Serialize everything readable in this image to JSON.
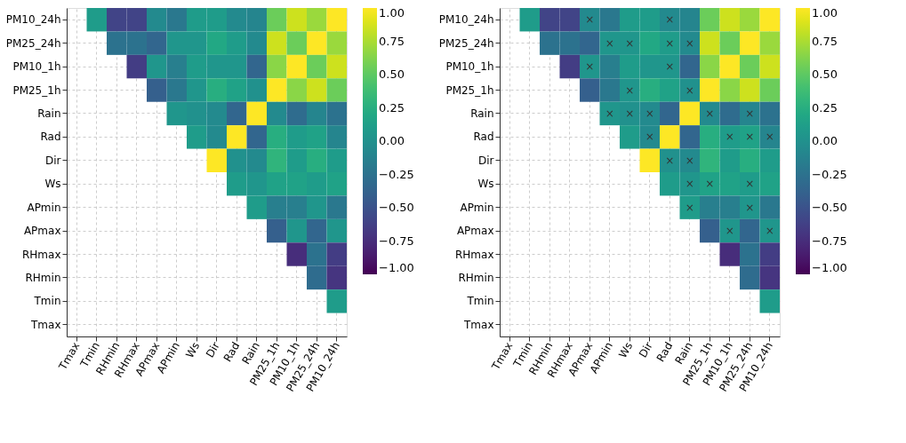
{
  "chart_data": [
    {
      "type": "heatmap",
      "categories": [
        "Tmax",
        "Tmin",
        "RHmin",
        "RHmax",
        "APmax",
        "APmin",
        "Ws",
        "Dir",
        "Rad",
        "Rain",
        "PM25_1h",
        "PM10_1h",
        "PM25_24h",
        "PM10_24h"
      ],
      "y_categories": [
        "PM10_24h",
        "PM25_24h",
        "PM10_1h",
        "PM25_1h",
        "Rain",
        "Rad",
        "Dir",
        "Ws",
        "APmin",
        "APmax",
        "RHmax",
        "RHmin",
        "Tmin",
        "Tmax"
      ],
      "cells": [
        [
          null,
          0.1,
          -0.6,
          -0.6,
          -0.05,
          -0.2,
          0.1,
          0.1,
          -0.05,
          -0.1,
          0.55,
          0.85,
          0.7,
          1
        ],
        [
          null,
          null,
          -0.25,
          -0.25,
          -0.35,
          0.05,
          0.05,
          0.2,
          0.1,
          -0.05,
          0.85,
          0.55,
          1,
          0.7
        ],
        [
          null,
          null,
          null,
          -0.65,
          0.05,
          -0.15,
          0.1,
          0.05,
          0.05,
          -0.35,
          0.65,
          1,
          0.55,
          0.85
        ],
        [
          null,
          null,
          null,
          null,
          -0.4,
          -0.2,
          0.05,
          0.25,
          0.15,
          0,
          1,
          0.65,
          0.85,
          0.55
        ],
        [
          null,
          null,
          null,
          null,
          null,
          0.05,
          0,
          -0.05,
          -0.35,
          1,
          -0.05,
          -0.3,
          -0.1,
          -0.25
        ],
        [
          null,
          null,
          null,
          null,
          null,
          null,
          0.1,
          -0.05,
          1,
          -0.35,
          0.25,
          0.1,
          0.15,
          -0.1
        ],
        [
          null,
          null,
          null,
          null,
          null,
          null,
          null,
          1,
          0,
          -0.05,
          0.3,
          0.1,
          0.25,
          0.1
        ],
        [
          null,
          null,
          null,
          null,
          null,
          null,
          null,
          null,
          0.1,
          0.05,
          0.15,
          0.15,
          0.1,
          0.15
        ],
        [
          null,
          null,
          null,
          null,
          null,
          null,
          null,
          null,
          null,
          0.1,
          -0.15,
          -0.15,
          0.05,
          -0.2
        ],
        [
          null,
          null,
          null,
          null,
          null,
          null,
          null,
          null,
          null,
          null,
          -0.4,
          0.05,
          -0.35,
          0.05
        ],
        [
          null,
          null,
          null,
          null,
          null,
          null,
          null,
          null,
          null,
          null,
          null,
          -0.75,
          -0.25,
          -0.65
        ],
        [
          null,
          null,
          null,
          null,
          null,
          null,
          null,
          null,
          null,
          null,
          null,
          null,
          -0.3,
          -0.7
        ],
        [
          null,
          null,
          null,
          null,
          null,
          null,
          null,
          null,
          null,
          null,
          null,
          null,
          null,
          0.1
        ],
        [
          null,
          null,
          null,
          null,
          null,
          null,
          null,
          null,
          null,
          null,
          null,
          null,
          null,
          null
        ]
      ],
      "clim": [
        -1,
        1
      ],
      "cticks": [
        {
          "value": -1,
          "label": "−1.00"
        },
        {
          "value": -0.75,
          "label": "−0.75"
        },
        {
          "value": -0.5,
          "label": "−0.50"
        },
        {
          "value": -0.25,
          "label": "−0.25"
        },
        {
          "value": 0,
          "label": "0.00"
        },
        {
          "value": 0.25,
          "label": "0.25"
        },
        {
          "value": 0.5,
          "label": "0.50"
        },
        {
          "value": 0.75,
          "label": "0.75"
        },
        {
          "value": 1,
          "label": "1.00"
        }
      ],
      "grid": true
    },
    {
      "type": "heatmap",
      "categories": [
        "Tmax",
        "Tmin",
        "RHmin",
        "RHmax",
        "APmax",
        "APmin",
        "Ws",
        "Dir",
        "Rad",
        "Rain",
        "PM25_1h",
        "PM10_1h",
        "PM25_24h",
        "PM10_24h"
      ],
      "y_categories": [
        "PM10_24h",
        "PM25_24h",
        "PM10_1h",
        "PM25_1h",
        "Rain",
        "Rad",
        "Dir",
        "Ws",
        "APmin",
        "APmax",
        "RHmax",
        "RHmin",
        "Tmin",
        "Tmax"
      ],
      "cells": [
        [
          null,
          0.1,
          -0.6,
          -0.6,
          -0.05,
          -0.2,
          0.1,
          0.1,
          -0.05,
          -0.1,
          0.55,
          0.85,
          0.7,
          1
        ],
        [
          null,
          null,
          -0.25,
          -0.25,
          -0.35,
          0.05,
          0.05,
          0.2,
          0.1,
          -0.05,
          0.85,
          0.55,
          1,
          0.7
        ],
        [
          null,
          null,
          null,
          -0.65,
          0.05,
          -0.15,
          0.1,
          0.05,
          0.05,
          -0.35,
          0.65,
          1,
          0.55,
          0.85
        ],
        [
          null,
          null,
          null,
          null,
          -0.4,
          -0.2,
          0.05,
          0.25,
          0.15,
          0,
          1,
          0.65,
          0.85,
          0.55
        ],
        [
          null,
          null,
          null,
          null,
          null,
          0.05,
          0,
          -0.05,
          -0.35,
          1,
          -0.05,
          -0.3,
          -0.1,
          -0.25
        ],
        [
          null,
          null,
          null,
          null,
          null,
          null,
          0.1,
          -0.05,
          1,
          -0.35,
          0.25,
          0.1,
          0.15,
          -0.1
        ],
        [
          null,
          null,
          null,
          null,
          null,
          null,
          null,
          1,
          0,
          -0.05,
          0.3,
          0.1,
          0.25,
          0.1
        ],
        [
          null,
          null,
          null,
          null,
          null,
          null,
          null,
          null,
          0.1,
          0.05,
          0.15,
          0.15,
          0.1,
          0.15
        ],
        [
          null,
          null,
          null,
          null,
          null,
          null,
          null,
          null,
          null,
          0.1,
          -0.15,
          -0.15,
          0.05,
          -0.2
        ],
        [
          null,
          null,
          null,
          null,
          null,
          null,
          null,
          null,
          null,
          null,
          -0.4,
          0.05,
          -0.35,
          0.05
        ],
        [
          null,
          null,
          null,
          null,
          null,
          null,
          null,
          null,
          null,
          null,
          null,
          -0.75,
          -0.25,
          -0.65
        ],
        [
          null,
          null,
          null,
          null,
          null,
          null,
          null,
          null,
          null,
          null,
          null,
          null,
          -0.3,
          -0.7
        ],
        [
          null,
          null,
          null,
          null,
          null,
          null,
          null,
          null,
          null,
          null,
          null,
          null,
          null,
          0.1
        ],
        [
          null,
          null,
          null,
          null,
          null,
          null,
          null,
          null,
          null,
          null,
          null,
          null,
          null,
          null
        ]
      ],
      "cell_labels": [
        [
          null,
          null,
          null,
          null,
          "×",
          null,
          null,
          null,
          "×",
          null,
          null,
          null,
          null,
          null
        ],
        [
          null,
          null,
          null,
          null,
          null,
          "×",
          "×",
          null,
          "×",
          "×",
          null,
          null,
          null,
          null
        ],
        [
          null,
          null,
          null,
          null,
          "×",
          null,
          null,
          null,
          "×",
          null,
          null,
          null,
          null,
          null
        ],
        [
          null,
          null,
          null,
          null,
          null,
          null,
          "×",
          null,
          null,
          "×",
          null,
          null,
          null,
          null
        ],
        [
          null,
          null,
          null,
          null,
          null,
          "×",
          "×",
          "×",
          null,
          null,
          "×",
          null,
          "×",
          null
        ],
        [
          null,
          null,
          null,
          null,
          null,
          null,
          null,
          "×",
          null,
          null,
          null,
          "×",
          "×",
          "×"
        ],
        [
          null,
          null,
          null,
          null,
          null,
          null,
          null,
          null,
          "×",
          "×",
          null,
          null,
          null,
          null
        ],
        [
          null,
          null,
          null,
          null,
          null,
          null,
          null,
          null,
          null,
          "×",
          "×",
          null,
          "×",
          null
        ],
        [
          null,
          null,
          null,
          null,
          null,
          null,
          null,
          null,
          null,
          "×",
          null,
          null,
          "×",
          null
        ],
        [
          null,
          null,
          null,
          null,
          null,
          null,
          null,
          null,
          null,
          null,
          null,
          "×",
          null,
          "×"
        ],
        [
          null,
          null,
          null,
          null,
          null,
          null,
          null,
          null,
          null,
          null,
          null,
          null,
          null,
          null
        ],
        [
          null,
          null,
          null,
          null,
          null,
          null,
          null,
          null,
          null,
          null,
          null,
          null,
          null,
          null
        ],
        [
          null,
          null,
          null,
          null,
          null,
          null,
          null,
          null,
          null,
          null,
          null,
          null,
          null,
          null
        ],
        [
          null,
          null,
          null,
          null,
          null,
          null,
          null,
          null,
          null,
          null,
          null,
          null,
          null,
          null
        ]
      ],
      "clim": [
        -1,
        1
      ],
      "cticks": [
        {
          "value": -1,
          "label": "−1.00"
        },
        {
          "value": -0.75,
          "label": "−0.75"
        },
        {
          "value": -0.5,
          "label": "−0.50"
        },
        {
          "value": -0.25,
          "label": "−0.25"
        },
        {
          "value": 0,
          "label": "0.00"
        },
        {
          "value": 0.25,
          "label": "0.25"
        },
        {
          "value": 0.5,
          "label": "0.50"
        },
        {
          "value": 0.75,
          "label": "0.75"
        },
        {
          "value": 1,
          "label": "1.00"
        }
      ],
      "grid": true
    }
  ]
}
